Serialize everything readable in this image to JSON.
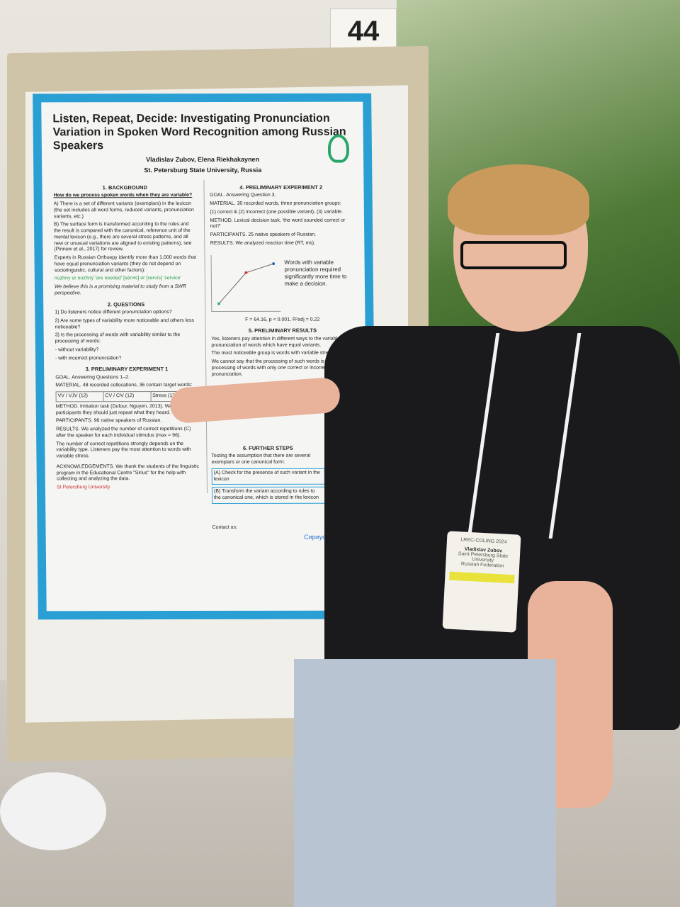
{
  "sign": {
    "number": "44"
  },
  "poster": {
    "title": "Listen, Repeat, Decide: Investigating Pronunciation Variation in Spoken Word Recognition among Russian Speakers",
    "authors": "Vladislav Zubov, Elena Riekhakaynen",
    "affiliation": "St. Petersburg State University, Russia",
    "background": {
      "heading": "1. BACKGROUND",
      "question": "How do we process spoken words when they are variable?",
      "a": "A) There is a set of different variants (exemplars) in the lexicon (the set includes all word forms, reduced variants, pronunciation variants, etc.)",
      "b": "B) The surface form is transformed according to the rules and the result is compared with the canonical, reference unit of the mental lexicon (e.g., there are several stress patterns, and all new or unusual variations are aligned to existing patterns), see (Pinnow et al., 2017) for review.",
      "experts": "Experts in Russian Orthoepy identify more than 1,000 words that have equal pronunciation variants (they do not depend on sociolinguistic, cultural and other factors):",
      "examples": "núzhny or nuzhný 'are needed' [sérvis] or [servís] 'service'",
      "note": "We believe this is a promising material to study from a SWR perspective."
    },
    "questions": {
      "heading": "2. QUESTIONS",
      "items": [
        "1) Do listeners notice different pronunciation options?",
        "2) Are some types of variability more noticeable and others less noticeable?",
        "3) Is the processing of words with variability similar to the processing of words:",
        "- without variability?",
        "- with incorrect pronunciation?"
      ]
    },
    "exp1": {
      "heading": "3. PRELIMINARY EXPERIMENT 1",
      "goal": "GOAL. Answering Questions 1–2.",
      "material": "MATERIAL. 48 recorded collocations, 36 contain target words:",
      "table_headers": [
        "VV / VJV (12)",
        "CV / CʲV (12)",
        "Stress (12)"
      ],
      "method": "METHOD. Imitation task (Dufour, Nguyen, 2013). We instructed participants they should just repeat what they heard.",
      "participants": "PARTICIPANTS. 96 native speakers of Russian.",
      "results": "RESULTS. We analyzed the number of correct repetitions (C) after the speaker for each individual stimulus (max = 96).",
      "finding": "The number of correct repetitions strongly depends on the variability type. Listeners pay the most attention to words with variable stress."
    },
    "exp2": {
      "heading": "4. PRELIMINARY EXPERIMENT 2",
      "goal": "GOAL. Answering Question 3.",
      "material": "MATERIAL. 30 recorded words, three pronunciation groups:",
      "groups": "(1) correct & (2) incorrect (one possible variant), (3) variable.",
      "method": "METHOD. Lexical decision task, 'the word sounded correct or not?'",
      "participants": "PARTICIPANTS. 25 native speakers of Russian.",
      "results": "RESULTS. We analyzed reaction time (RT, ms).",
      "finding": "Words with variable pronunciation required significantly more time to make a decision.",
      "formula": "F = 64.16, p < 0.001, R²adj = 0.22"
    },
    "prelim": {
      "heading": "5. PRELIMINARY RESULTS",
      "p1": "Yes, listeners pay attention in different ways to the variable pronunciation of words which have equal variants.",
      "p2": "The most noticeable group is words with variable stress.",
      "p3": "We cannot say that the processing of such words is similar to the processing of words with only one correct or incorrect pronunciation."
    },
    "further": {
      "heading": "6. FURTHER STEPS",
      "text": "Testing the assumption that there are several exemplars or one canonical form:",
      "a": "(A) Check for the presence of such variant in the lexicon",
      "b": "(B) Transform the variant according to rules to the canonical one, which is stored in the lexicon"
    },
    "ack": "ACKNOWLEDGEMENTS. We thank the students of the linguistic program in the Educational Centre \"Sirius\" for the help with collecting and analyzing the data.",
    "contact": "Contact us:",
    "logo_right": "Сириус",
    "logo_left": "St Petersburg University"
  },
  "badge": {
    "event": "LREC-COLING 2024",
    "name": "Vladislav Zubov",
    "org": "Saint Petersburg State University",
    "country": "Russian Federation"
  },
  "colors": {
    "poster_border": "#2a9fd4",
    "accent_green": "#2c9a4d",
    "shirt": "#1a1a1c"
  }
}
